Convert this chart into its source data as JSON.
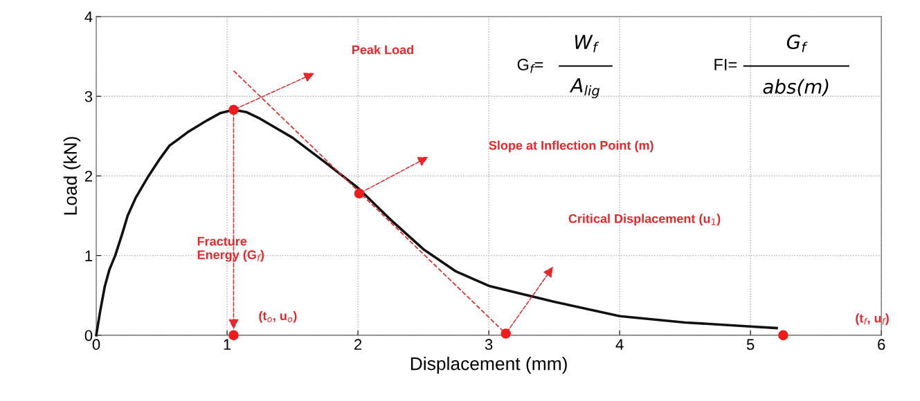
{
  "chart_data": {
    "type": "line",
    "xlabel": "Displacement (mm)",
    "ylabel": "Load (kN)",
    "xlim": [
      0,
      6
    ],
    "ylim": [
      0,
      4
    ],
    "xticks": [
      0,
      1,
      2,
      3,
      4,
      5,
      6
    ],
    "yticks": [
      0,
      1,
      2,
      3,
      4
    ],
    "grid": true,
    "marker": "none",
    "line_style": "solid",
    "series": [
      {
        "color": "#111111",
        "x": [
          0,
          0.03,
          0.065,
          0.1,
          0.145,
          0.2,
          0.24,
          0.3,
          0.4,
          0.48,
          0.56,
          0.7,
          0.85,
          0.95,
          1.05,
          1.15,
          1.25,
          1.5,
          1.75,
          2.0,
          2.25,
          2.5,
          2.75,
          3.0,
          3.5,
          4.0,
          4.5,
          5.0,
          5.2
        ],
        "values": [
          0,
          0.3,
          0.61,
          0.82,
          1.0,
          1.28,
          1.5,
          1.72,
          2.0,
          2.2,
          2.38,
          2.55,
          2.7,
          2.79,
          2.83,
          2.8,
          2.72,
          2.48,
          2.17,
          1.85,
          1.45,
          1.08,
          0.8,
          0.62,
          0.42,
          0.24,
          0.16,
          0.11,
          0.09
        ]
      },
      {
        "type": "line",
        "color": "#e03030",
        "line_style": "dashed",
        "x": [
          1.05,
          3.13
        ],
        "values": [
          3.32,
          0.02
        ]
      },
      {
        "type": "scatter",
        "color": "#ee1c1c",
        "marker": "circle",
        "x": [
          1.05,
          2.01,
          3.13,
          1.05,
          5.25
        ],
        "values": [
          2.83,
          1.78,
          0.02,
          0,
          0
        ]
      }
    ],
    "annotations": [
      "Peak Load",
      "Slope at Inflection Point (m)",
      "Critical Displacement (u$_{1}$)",
      "Fracture\nEnergy (G$_{f}$)",
      "(t$_{o}$, u$_{o}$)",
      "(t$_{f}$, u$_{f}$)",
      "G$_{f}$=",
      "W$_{f}$",
      "A$_{lig}$",
      "FI=",
      "G$_{f}$",
      "abs(m)"
    ]
  }
}
